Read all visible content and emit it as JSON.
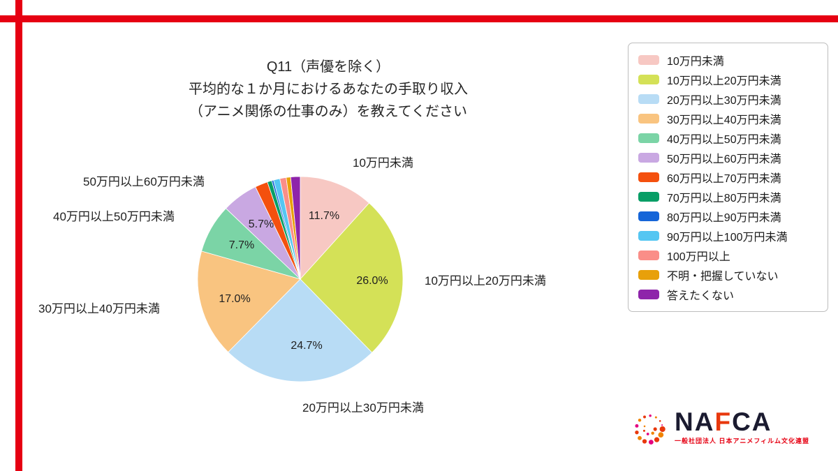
{
  "page": {
    "background": "#ffffff",
    "accent_red": "#E60012"
  },
  "title": {
    "line1": "Q11（声優を除く）",
    "line2": "平均的な１か月におけるあなたの手取り収入",
    "line3": "（アニメ関係の仕事のみ）を教えてください"
  },
  "chart_data": {
    "type": "pie",
    "title": "Q11（声優を除く）平均的な１か月におけるあなたの手取り収入（アニメ関係の仕事のみ）を教えてください",
    "categories": [
      "10万円未満",
      "10万円以上20万円未満",
      "20万円以上30万円未満",
      "30万円以上40万円未満",
      "40万円以上50万円未満",
      "50万円以上60万円未満",
      "60万円以上70万円未満",
      "70万円以上80万円未満",
      "80万円以上90万円未満",
      "90万円以上100万円未満",
      "100万円以上",
      "不明・把握していない",
      "答えたくない"
    ],
    "values": [
      11.7,
      26.0,
      24.7,
      17.0,
      7.7,
      5.7,
      2.0,
      0.7,
      0.3,
      1.0,
      1.0,
      0.7,
      1.5
    ],
    "colors": [
      "#F7C8C3",
      "#D4E157",
      "#B8DCF5",
      "#F9C480",
      "#7BD4A6",
      "#C9A8E2",
      "#F4500E",
      "#089E66",
      "#1565D8",
      "#55C6F2",
      "#FA8E88",
      "#E8A00A",
      "#8E24AA"
    ],
    "start_angle": "top",
    "direction": "clockwise",
    "legend_position": "right",
    "pct_labels": [
      "11.7%",
      "26.0%",
      "24.7%",
      "17.0%",
      "7.7%",
      "5.7%"
    ]
  },
  "footer_logo": {
    "wordmark_part1": "NA",
    "wordmark_part2": "F",
    "wordmark_part3": "CA",
    "subtitle": "一般社団法人 日本アニメフィルム文化連盟"
  }
}
